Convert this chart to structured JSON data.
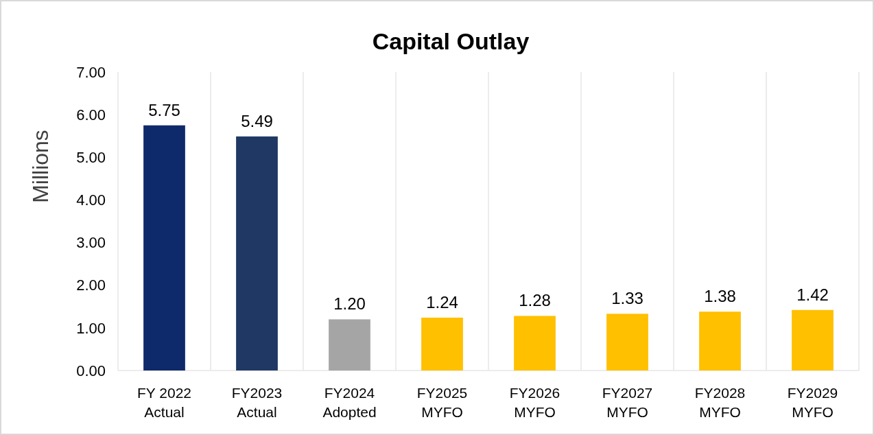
{
  "chart_data": {
    "type": "bar",
    "title": "Capital Outlay",
    "ylabel": "Millions",
    "categories": [
      "FY 2022\nActual",
      "FY2023\nActual",
      "FY2024\nAdopted",
      "FY2025\nMYFO",
      "FY2026\nMYFO",
      "FY2027\nMYFO",
      "FY2028\nMYFO",
      "FY2029\nMYFO"
    ],
    "values": [
      5.75,
      5.49,
      1.2,
      1.24,
      1.28,
      1.33,
      1.38,
      1.42
    ],
    "colors": [
      "#0f2a6b",
      "#203864",
      "#a5a5a5",
      "#ffc000",
      "#ffc000",
      "#ffc000",
      "#ffc000",
      "#ffc000"
    ],
    "value_labels": [
      "5.75",
      "5.49",
      "1.20",
      "1.24",
      "1.28",
      "1.33",
      "1.38",
      "1.42"
    ],
    "ylim": [
      0,
      7
    ],
    "yticks": [
      {
        "value": 0,
        "label": "0.00"
      },
      {
        "value": 1,
        "label": "1.00"
      },
      {
        "value": 2,
        "label": "2.00"
      },
      {
        "value": 3,
        "label": "3.00"
      },
      {
        "value": 4,
        "label": "4.00"
      },
      {
        "value": 5,
        "label": "5.00"
      },
      {
        "value": 6,
        "label": "6.00"
      },
      {
        "value": 7,
        "label": "7.00"
      }
    ],
    "grid": "x"
  }
}
